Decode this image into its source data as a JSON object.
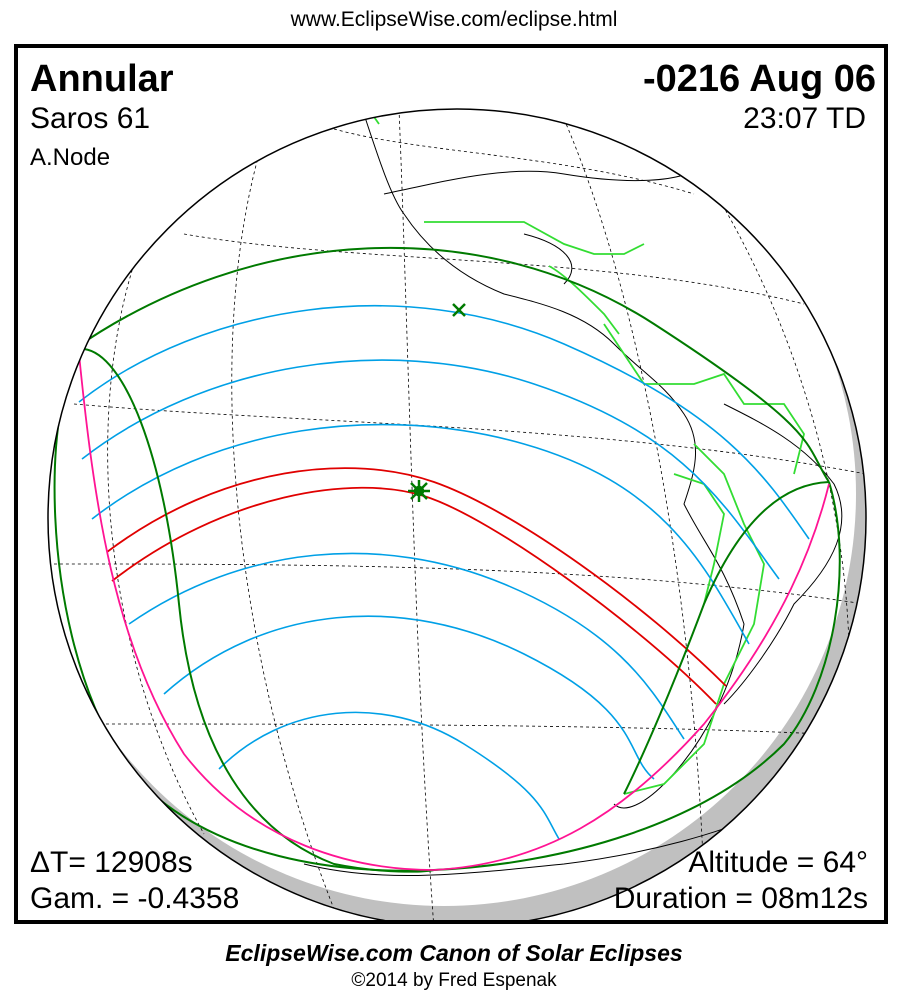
{
  "header_url": "www.EclipseWise.com/eclipse.html",
  "eclipse": {
    "type": "Annular",
    "saros": "Saros  61",
    "node": "A.Node",
    "date": "-0216 Aug 06",
    "time": "23:07 TD",
    "delta_t": "ΔT=  12908s",
    "gamma": "Gam. = -0.4358",
    "altitude": "Altitude = 64°",
    "duration": "Duration = 08m12s"
  },
  "colors": {
    "central_path": "#e00000",
    "penumbral_contours": "#00a0e6",
    "penumbral_limits": "#007a00",
    "sunrise_sunset_curve": "#ff1493",
    "borders": "#33dd33",
    "night": "#c0c0c0"
  },
  "markers": {
    "greatest_eclipse": "star-icon",
    "sub_solar_point": "x-icon"
  },
  "footer": {
    "title": "EclipseWise.com Canon of Solar Eclipses",
    "copyright": "©2014 by Fred Espenak"
  }
}
